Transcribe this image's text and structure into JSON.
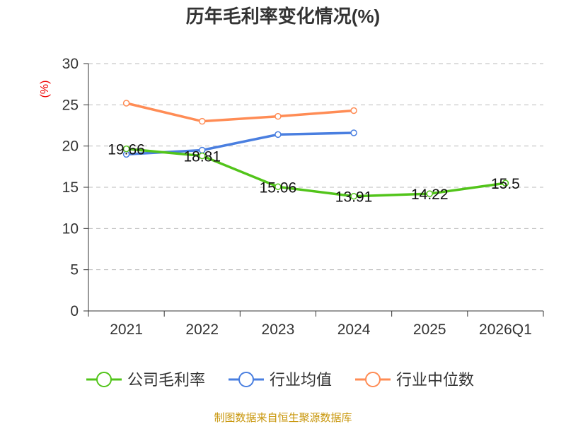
{
  "chart_data": {
    "type": "line",
    "title": "历年毛利率变化情况(%)",
    "ylabel": "(%)",
    "xlabel": "",
    "ylim": [
      0,
      30
    ],
    "yticks": [
      0,
      5,
      10,
      15,
      20,
      25,
      30
    ],
    "grid": true,
    "categories": [
      "2021",
      "2022",
      "2023",
      "2024",
      "2025",
      "2026Q1"
    ],
    "series": [
      {
        "name": "公司毛利率",
        "color": "#52c41a",
        "values": [
          19.66,
          18.81,
          15.06,
          13.91,
          14.22,
          15.5
        ],
        "labels": [
          "19.66",
          "18.81",
          "15.06",
          "13.91",
          "14.22",
          "15.5"
        ]
      },
      {
        "name": "行业均值",
        "color": "#4a7fe0",
        "values": [
          19.0,
          19.5,
          21.4,
          21.6,
          null,
          null
        ]
      },
      {
        "name": "行业中位数",
        "color": "#ff8c55",
        "values": [
          25.2,
          23.0,
          23.6,
          24.3,
          null,
          null
        ]
      }
    ],
    "legend_position": "bottom",
    "source": "制图数据来自恒生聚源数据库"
  }
}
